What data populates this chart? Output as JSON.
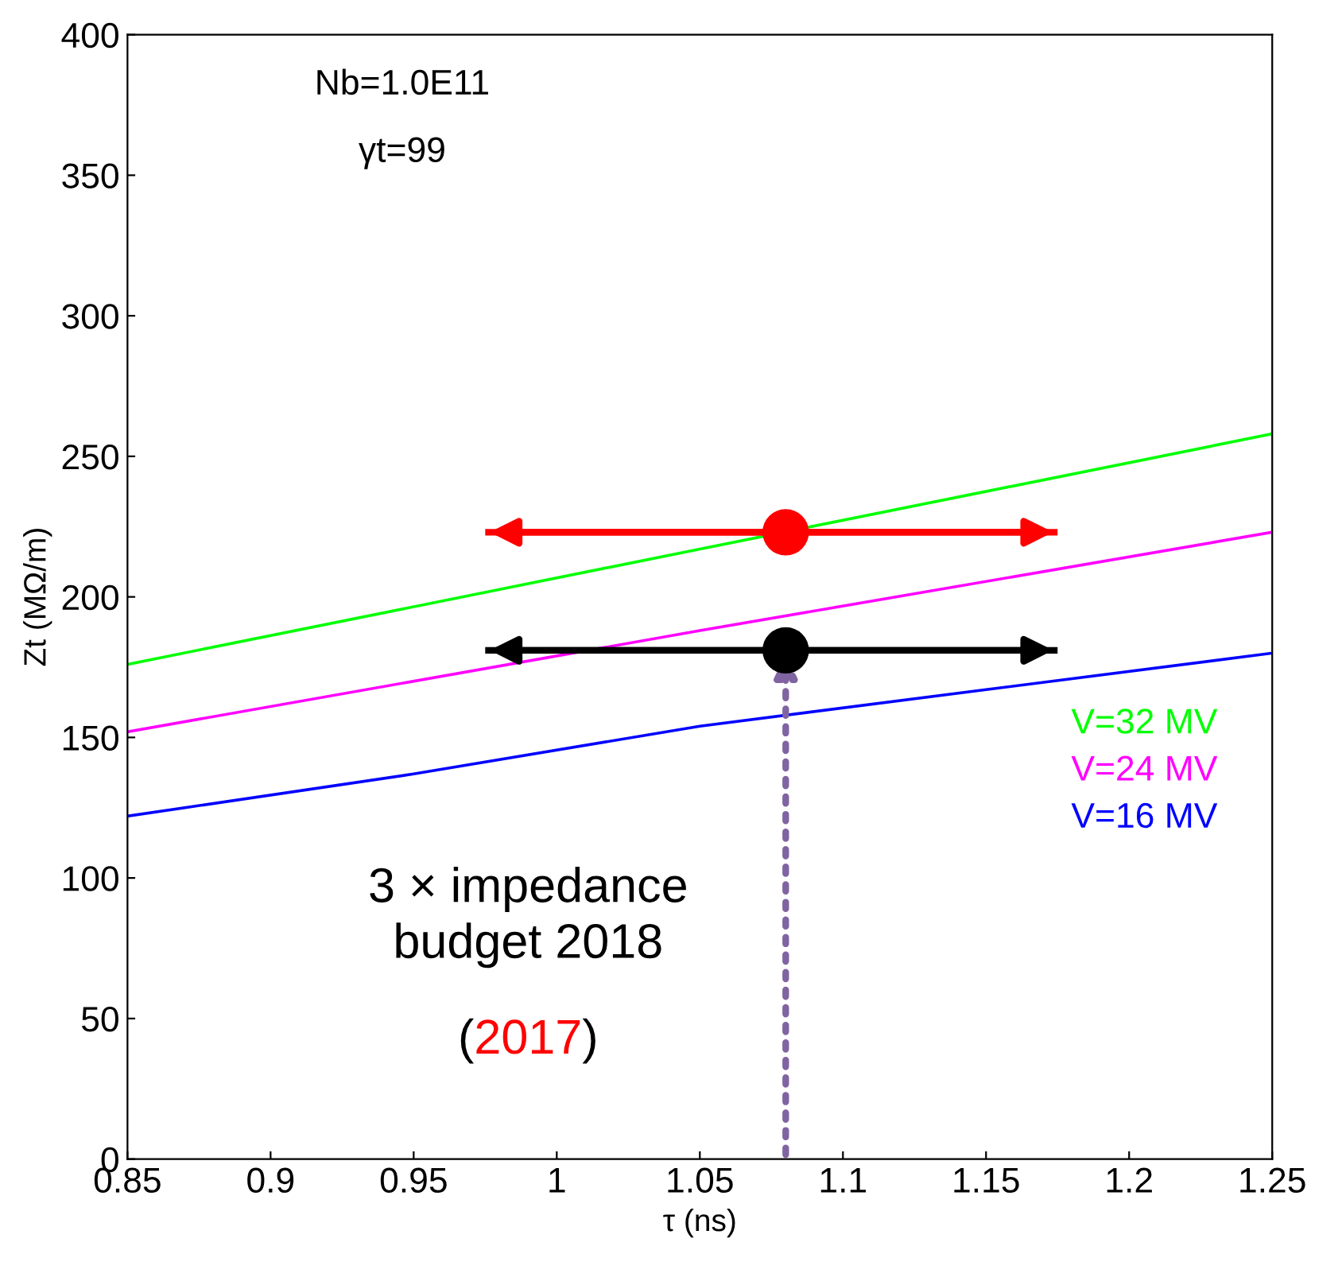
{
  "chart_data": {
    "type": "line",
    "xlabel": "τ (ns)",
    "ylabel": "Zt (MΩ/m)",
    "xlim": [
      0.85,
      1.25
    ],
    "ylim": [
      0,
      400
    ],
    "xticks": [
      0.85,
      0.9,
      0.95,
      1,
      1.05,
      1.1,
      1.15,
      1.2,
      1.25
    ],
    "yticks": [
      0,
      50,
      100,
      150,
      200,
      250,
      300,
      350,
      400
    ],
    "grid": false,
    "legend": "bottom right",
    "marker": "none",
    "line_style": "solid",
    "series": [
      {
        "name": "V=32 MV",
        "color": "#00ff00",
        "x": [
          0.85,
          1.05,
          1.25
        ],
        "values": [
          176,
          217,
          258
        ]
      },
      {
        "name": "V=24 MV",
        "color": "#ff00ff",
        "x": [
          0.85,
          1.05,
          1.25
        ],
        "values": [
          152,
          188,
          223
        ]
      },
      {
        "name": "V=16 MV",
        "color": "#0000ff",
        "x": [
          0.85,
          0.95,
          1.05,
          1.15,
          1.25
        ],
        "values": [
          122,
          137,
          154,
          167,
          180
        ]
      },
      {
        "type": "scatter",
        "marker": "circle",
        "color": "#ff0000",
        "x": [
          1.08
        ],
        "values": [
          223
        ],
        "xerrors": [
          [
            0.975,
            1.175
          ]
        ]
      },
      {
        "type": "scatter",
        "marker": "circle",
        "color": "#000000",
        "x": [
          1.08
        ],
        "values": [
          181
        ],
        "xerrors": [
          [
            0.975,
            1.175
          ]
        ]
      }
    ],
    "annotations": [
      "Nb=1.0E11",
      "γt=99",
      "3 × impedance budget 2018",
      "(",
      "2017",
      ")"
    ]
  }
}
